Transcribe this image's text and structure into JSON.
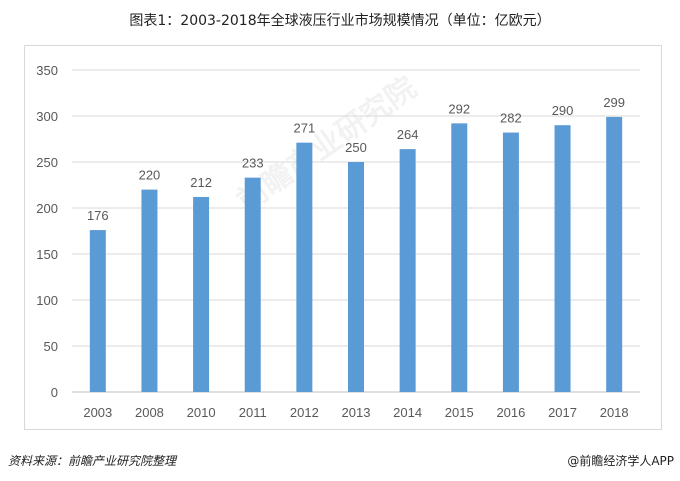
{
  "title": "图表1：2003-2018年全球液压行业市场规模情况（单位：亿欧元）",
  "source": "资料来源：前瞻产业研究院整理",
  "credit": "@前瞻经济学人APP",
  "watermark": "前瞻产业研究院",
  "colors": {
    "bar": "#5b9bd5",
    "grid": "#d9d9d9",
    "text": "#595959"
  },
  "chart_data": {
    "type": "bar",
    "title": "图表1：2003-2018年全球液压行业市场规模情况（单位：亿欧元）",
    "categories": [
      "2003",
      "2008",
      "2010",
      "2011",
      "2012",
      "2013",
      "2014",
      "2015",
      "2016",
      "2017",
      "2018"
    ],
    "values": [
      176,
      220,
      212,
      233,
      271,
      250,
      264,
      292,
      282,
      290,
      299
    ],
    "xlabel": "",
    "ylabel": "",
    "ylim": [
      0,
      350
    ],
    "yticks": [
      0,
      50,
      100,
      150,
      200,
      250,
      300,
      350
    ],
    "grid": true,
    "legend": "none"
  }
}
